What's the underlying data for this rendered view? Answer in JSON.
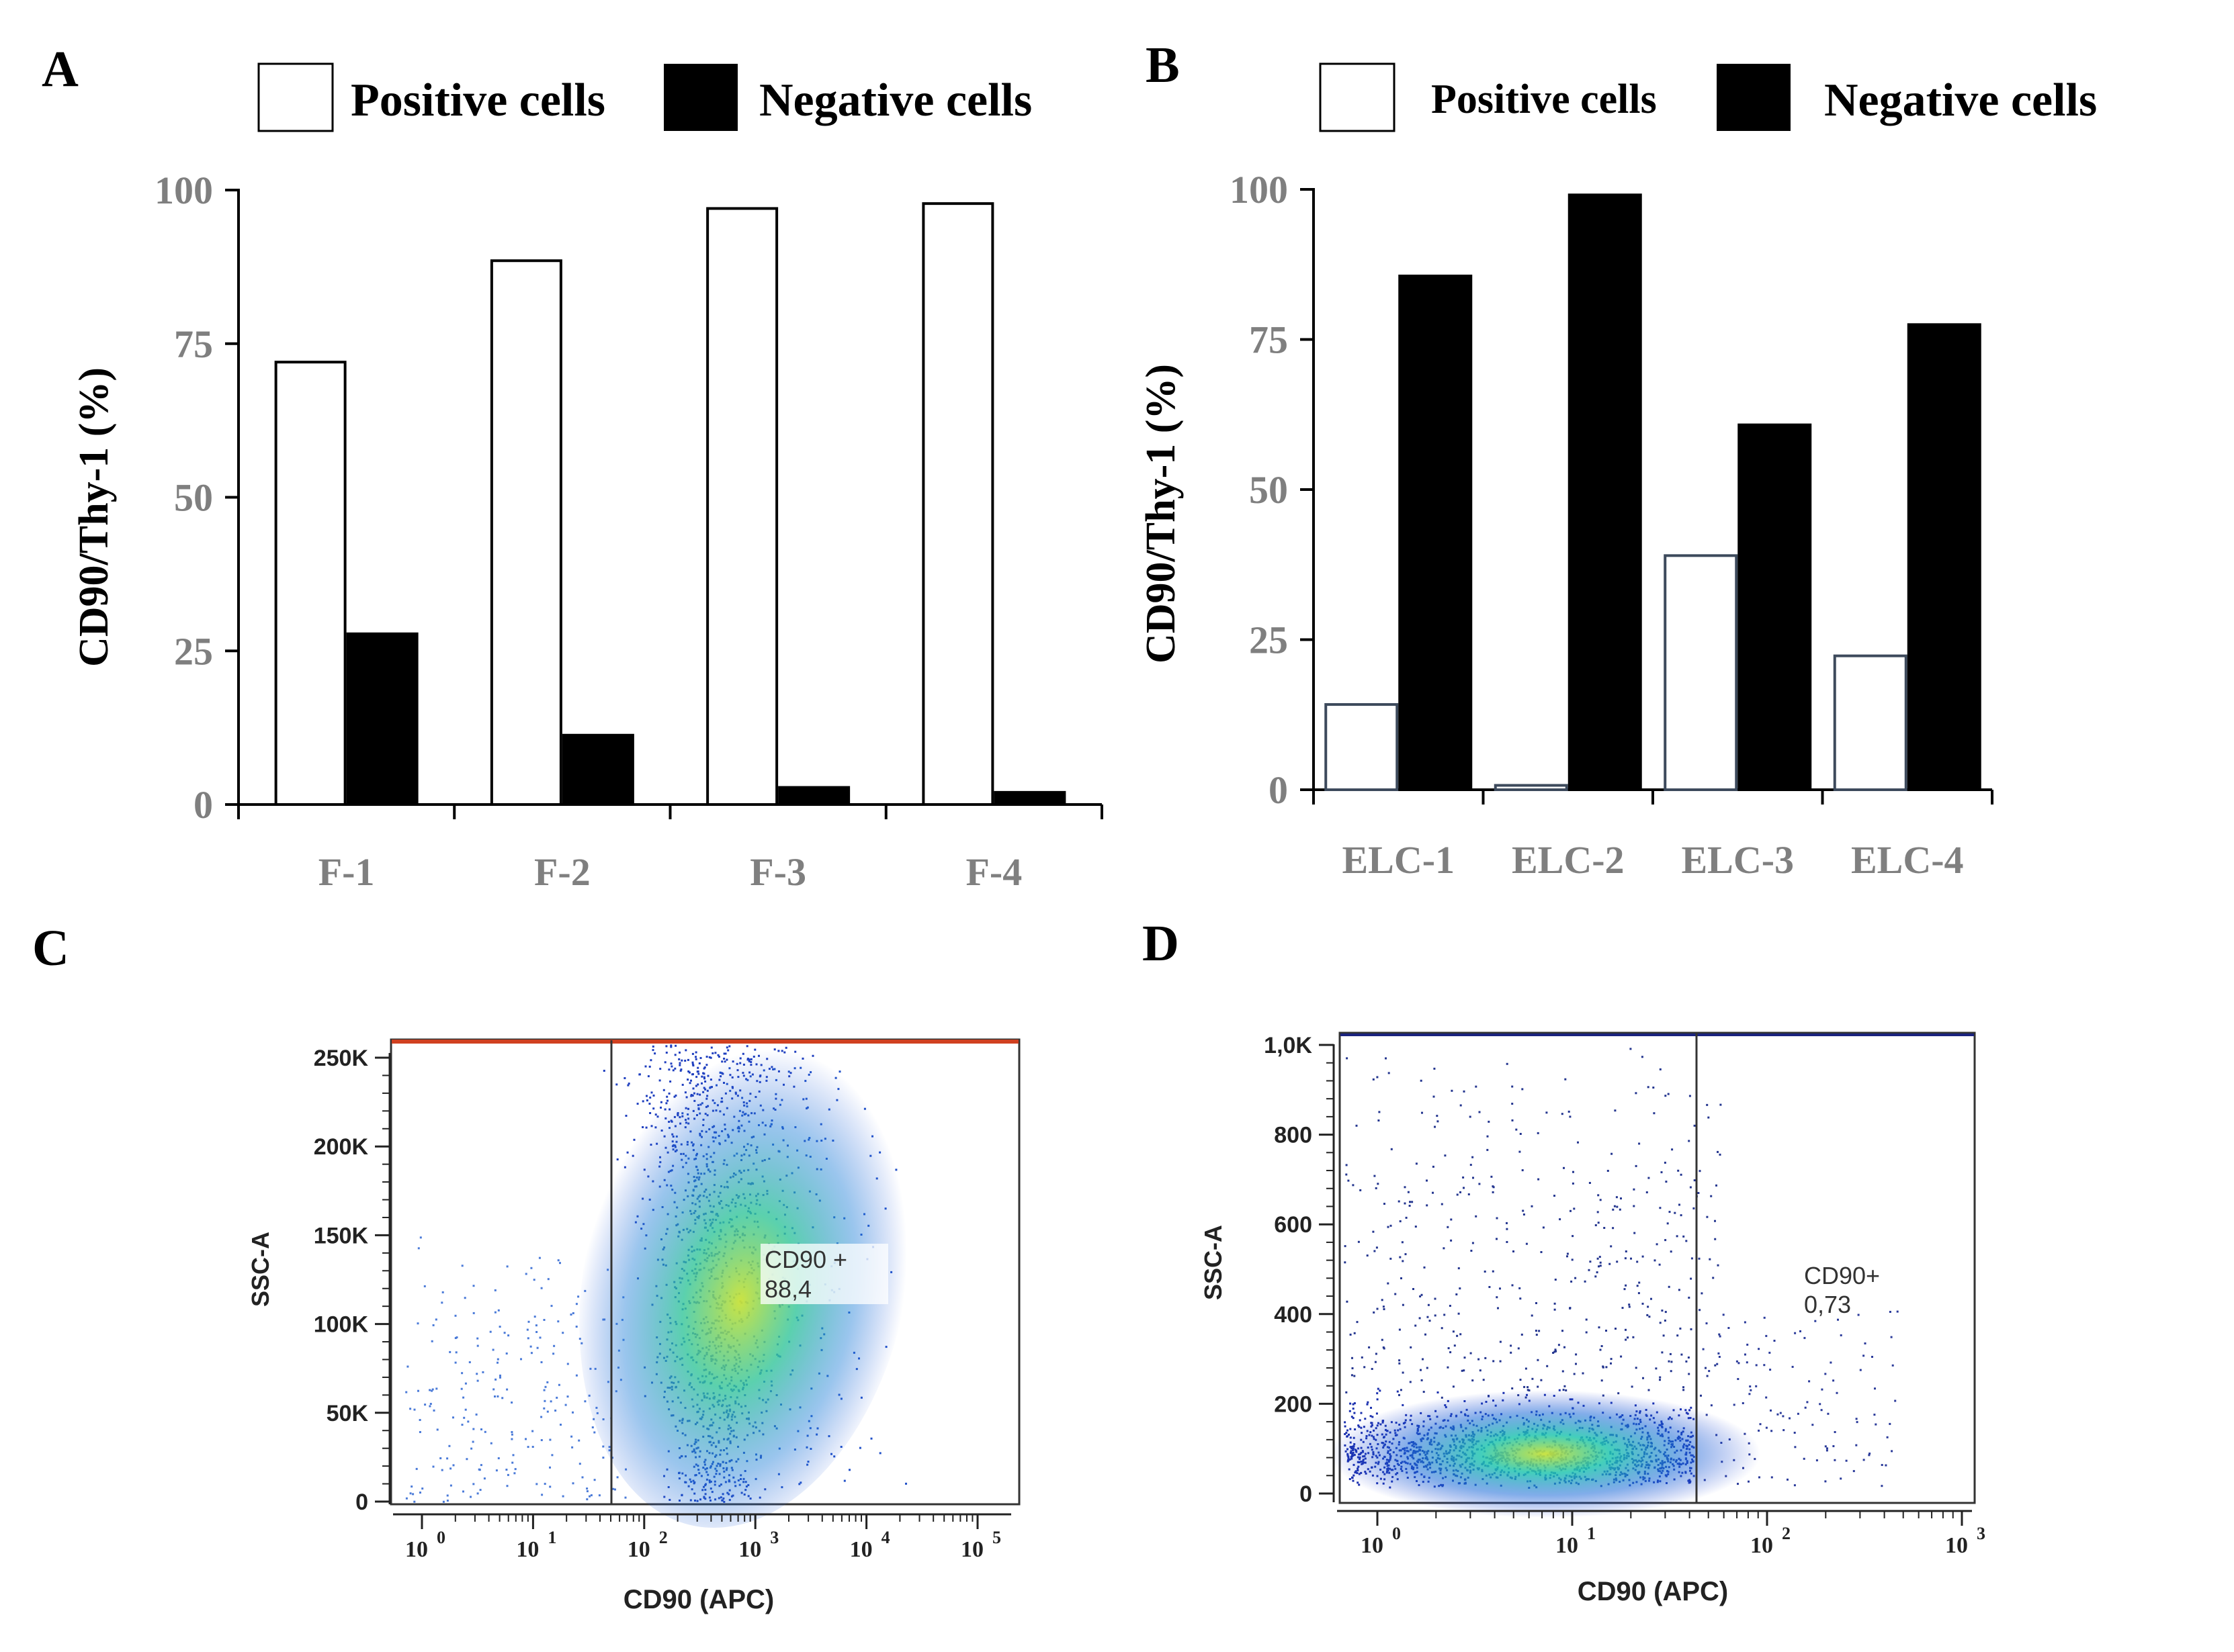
{
  "panels": {
    "A": "A",
    "B": "B",
    "C": "C",
    "D": "D"
  },
  "legend": {
    "positive": "Positive cells",
    "negative": "Negative cells",
    "positive_color": "#ffffff",
    "negative_color": "#000000"
  },
  "chart_data": [
    {
      "id": "A",
      "type": "bar",
      "categories": [
        "F-1",
        "F-2",
        "F-3",
        "F-4"
      ],
      "series": [
        {
          "name": "Positive cells",
          "values": [
            72,
            88.5,
            97,
            97.8
          ]
        },
        {
          "name": "Negative cells",
          "values": [
            28,
            11.5,
            3,
            2.2
          ]
        }
      ],
      "ylabel": "CD90/Thy-1 (%)",
      "ylim": [
        0,
        100
      ],
      "yticks": [
        0,
        25,
        50,
        75,
        100
      ]
    },
    {
      "id": "B",
      "type": "bar",
      "categories": [
        "ELC-1",
        "ELC-2",
        "ELC-3",
        "ELC-4"
      ],
      "series": [
        {
          "name": "Positive cells",
          "values": [
            14.2,
            0.73,
            39,
            22.3
          ]
        },
        {
          "name": "Negative cells",
          "values": [
            85.8,
            99.3,
            61,
            77.7
          ]
        }
      ],
      "ylabel": "CD90/Thy-1 (%)",
      "ylim": [
        0,
        100
      ],
      "yticks": [
        0,
        25,
        50,
        75,
        100
      ]
    },
    {
      "id": "C",
      "type": "scatter",
      "xlabel": "CD90 (APC)",
      "ylabel": "SSC-A",
      "xscale": "log",
      "xticks": [
        "10",
        "10",
        "10",
        "10",
        "10",
        "10"
      ],
      "xtick_exponents": [
        "0",
        "1",
        "2",
        "3",
        "4",
        "5"
      ],
      "yticks": [
        "0",
        "50K",
        "100K",
        "150K",
        "200K",
        "250K"
      ],
      "gate_label": "CD90 +",
      "gate_value": "88,4"
    },
    {
      "id": "D",
      "type": "scatter",
      "xlabel": "CD90 (APC)",
      "ylabel": "SSC-A",
      "xscale": "log",
      "xticks": [
        "10",
        "10",
        "10",
        "10"
      ],
      "xtick_exponents": [
        "0",
        "1",
        "2",
        "3"
      ],
      "yticks": [
        "0",
        "200",
        "400",
        "600",
        "800",
        "1,0K"
      ],
      "gate_label": "CD90+",
      "gate_value": "0,73"
    }
  ]
}
